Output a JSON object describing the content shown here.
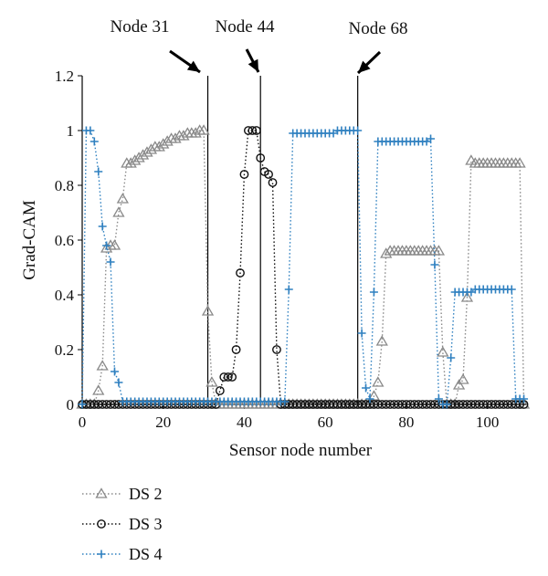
{
  "chart_data": {
    "type": "line",
    "title": "",
    "xlabel": "Sensor node number",
    "ylabel": "Grad-CAM",
    "xlim": [
      0,
      110
    ],
    "ylim": [
      0,
      1.2
    ],
    "xticks": [
      0,
      20,
      40,
      60,
      80,
      100
    ],
    "yticks": [
      0,
      0.2,
      0.4,
      0.6,
      0.8,
      1,
      1.2
    ],
    "xtick_labels": [
      "0",
      "20",
      "40",
      "60",
      "80",
      100
    ],
    "ytick_labels": [
      "0",
      "0.2",
      "0.4",
      "0.6",
      "0.8",
      "1",
      "1.2"
    ],
    "grid": false,
    "legend_position": "bottom-left",
    "annotations": [
      {
        "text": "Node 31",
        "x": 31
      },
      {
        "text": "Node 44",
        "x": 44
      },
      {
        "text": "Node 68",
        "x": 68
      }
    ],
    "vertical_lines_x": [
      31,
      44,
      68
    ],
    "series": [
      {
        "name": "DS 2",
        "marker": "triangle",
        "color": "#8a8a8a",
        "x": [
          0,
          1,
          2,
          3,
          4,
          5,
          6,
          7,
          8,
          9,
          10,
          11,
          12,
          13,
          14,
          15,
          16,
          17,
          18,
          19,
          20,
          21,
          22,
          23,
          24,
          25,
          26,
          27,
          28,
          29,
          30,
          31,
          32,
          33,
          34,
          35,
          36,
          37,
          38,
          39,
          40,
          41,
          42,
          43,
          44,
          45,
          46,
          47,
          48,
          49,
          50,
          51,
          52,
          53,
          54,
          55,
          56,
          57,
          58,
          59,
          60,
          61,
          62,
          63,
          64,
          65,
          66,
          67,
          68,
          69,
          70,
          71,
          72,
          73,
          74,
          75,
          76,
          77,
          78,
          79,
          80,
          81,
          82,
          83,
          84,
          85,
          86,
          87,
          88,
          89,
          90,
          91,
          92,
          93,
          94,
          95,
          96,
          97,
          98,
          99,
          100,
          101,
          102,
          103,
          104,
          105,
          106,
          107,
          108,
          109
        ],
        "values": [
          0,
          0,
          0,
          0,
          0.05,
          0.14,
          0.57,
          0.58,
          0.58,
          0.7,
          0.75,
          0.88,
          0.88,
          0.89,
          0.9,
          0.91,
          0.92,
          0.93,
          0.94,
          0.94,
          0.95,
          0.96,
          0.97,
          0.97,
          0.98,
          0.98,
          0.99,
          0.99,
          0.99,
          1.0,
          1.0,
          0.34,
          0.08,
          0,
          0,
          0,
          0,
          0,
          0,
          0,
          0,
          0,
          0,
          0,
          0,
          0,
          0,
          0,
          0,
          0,
          0,
          0,
          0,
          0,
          0,
          0,
          0,
          0,
          0,
          0,
          0,
          0,
          0,
          0,
          0,
          0,
          0,
          0,
          0,
          0,
          0,
          0,
          0.03,
          0.08,
          0.23,
          0.55,
          0.56,
          0.56,
          0.56,
          0.56,
          0.56,
          0.56,
          0.56,
          0.56,
          0.56,
          0.56,
          0.56,
          0.56,
          0.56,
          0.19,
          0,
          0,
          0,
          0.07,
          0.09,
          0.39,
          0.89,
          0.88,
          0.88,
          0.88,
          0.88,
          0.88,
          0.88,
          0.88,
          0.88,
          0.88,
          0.88,
          0.88,
          0.88,
          0
        ]
      },
      {
        "name": "DS 3",
        "marker": "circle",
        "color": "#111111",
        "x": [
          0,
          1,
          2,
          3,
          4,
          5,
          6,
          7,
          8,
          9,
          10,
          11,
          12,
          13,
          14,
          15,
          16,
          17,
          18,
          19,
          20,
          21,
          22,
          23,
          24,
          25,
          26,
          27,
          28,
          29,
          30,
          31,
          32,
          33,
          34,
          35,
          36,
          37,
          38,
          39,
          40,
          41,
          42,
          43,
          44,
          45,
          46,
          47,
          48,
          49,
          50,
          51,
          52,
          53,
          54,
          55,
          56,
          57,
          58,
          59,
          60,
          61,
          62,
          63,
          64,
          65,
          66,
          67,
          68,
          69,
          70,
          71,
          72,
          73,
          74,
          75,
          76,
          77,
          78,
          79,
          80,
          81,
          82,
          83,
          84,
          85,
          86,
          87,
          88,
          89,
          90,
          91,
          92,
          93,
          94,
          95,
          96,
          97,
          98,
          99,
          100,
          101,
          102,
          103,
          104,
          105,
          106,
          107,
          108,
          109
        ],
        "values": [
          0,
          0,
          0,
          0,
          0,
          0,
          0,
          0,
          0,
          0,
          0,
          0,
          0,
          0,
          0,
          0,
          0,
          0,
          0,
          0,
          0,
          0,
          0,
          0,
          0,
          0,
          0,
          0,
          0,
          0,
          0,
          0,
          0,
          0,
          0.05,
          0.1,
          0.1,
          0.1,
          0.2,
          0.48,
          0.84,
          1.0,
          1.0,
          1.0,
          0.9,
          0.85,
          0.84,
          0.81,
          0.2,
          0,
          0,
          0,
          0,
          0,
          0,
          0,
          0,
          0,
          0,
          0,
          0,
          0,
          0,
          0,
          0,
          0,
          0,
          0,
          0,
          0,
          0,
          0,
          0,
          0,
          0,
          0,
          0,
          0,
          0,
          0,
          0,
          0,
          0,
          0,
          0,
          0,
          0,
          0,
          0,
          0,
          0,
          0,
          0,
          0,
          0,
          0,
          0,
          0,
          0,
          0,
          0,
          0,
          0,
          0,
          0,
          0,
          0,
          0,
          0,
          0
        ]
      },
      {
        "name": "DS 4",
        "marker": "plus",
        "color": "#2f80c0",
        "x": [
          0,
          1,
          2,
          3,
          4,
          5,
          6,
          7,
          8,
          9,
          10,
          11,
          12,
          13,
          14,
          15,
          16,
          17,
          18,
          19,
          20,
          21,
          22,
          23,
          24,
          25,
          26,
          27,
          28,
          29,
          30,
          31,
          32,
          33,
          34,
          35,
          36,
          37,
          38,
          39,
          40,
          41,
          42,
          43,
          44,
          45,
          46,
          47,
          48,
          49,
          50,
          51,
          52,
          53,
          54,
          55,
          56,
          57,
          58,
          59,
          60,
          61,
          62,
          63,
          64,
          65,
          66,
          67,
          68,
          69,
          70,
          71,
          72,
          73,
          74,
          75,
          76,
          77,
          78,
          79,
          80,
          81,
          82,
          83,
          84,
          85,
          86,
          87,
          88,
          89,
          90,
          91,
          92,
          93,
          94,
          95,
          96,
          97,
          98,
          99,
          100,
          101,
          102,
          103,
          104,
          105,
          106,
          107,
          108,
          109
        ],
        "values": [
          0,
          1.0,
          1.0,
          0.96,
          0.85,
          0.65,
          0.58,
          0.52,
          0.12,
          0.08,
          0.01,
          0.01,
          0.01,
          0.01,
          0.01,
          0.01,
          0.01,
          0.01,
          0.01,
          0.01,
          0.01,
          0.01,
          0.01,
          0.01,
          0.01,
          0.01,
          0.01,
          0.01,
          0.01,
          0.01,
          0.01,
          0.01,
          0.01,
          0.01,
          0.01,
          0.01,
          0.01,
          0.01,
          0.01,
          0.01,
          0.01,
          0.01,
          0.01,
          0.01,
          0.01,
          0.01,
          0.01,
          0.01,
          0.01,
          0.01,
          0.01,
          0.42,
          0.99,
          0.99,
          0.99,
          0.99,
          0.99,
          0.99,
          0.99,
          0.99,
          0.99,
          0.99,
          0.99,
          1.0,
          1.0,
          1.0,
          1.0,
          1.0,
          1.0,
          0.26,
          0.06,
          0.02,
          0.41,
          0.96,
          0.96,
          0.96,
          0.96,
          0.96,
          0.96,
          0.96,
          0.96,
          0.96,
          0.96,
          0.96,
          0.96,
          0.96,
          0.97,
          0.51,
          0.02,
          0,
          0,
          0.17,
          0.41,
          0.41,
          0.41,
          0.41,
          0.41,
          0.42,
          0.42,
          0.42,
          0.42,
          0.42,
          0.42,
          0.42,
          0.42,
          0.42,
          0.42,
          0.02,
          0.02,
          0.02
        ]
      }
    ]
  }
}
